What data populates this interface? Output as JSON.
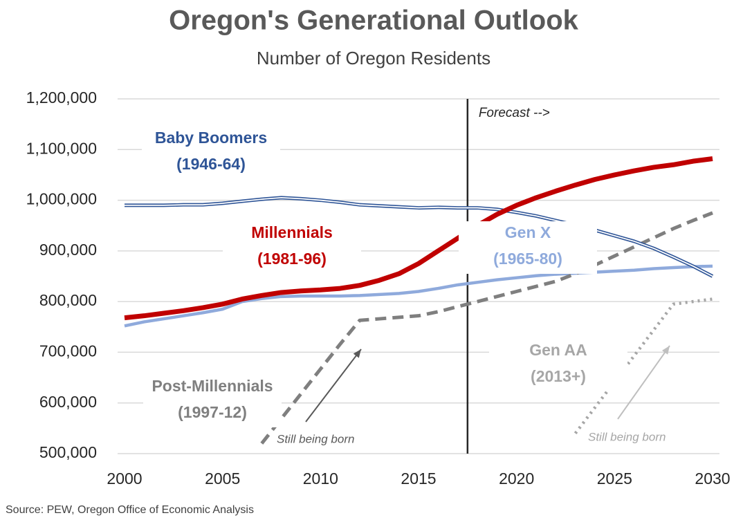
{
  "chart_data": {
    "type": "line",
    "title": "Oregon's Generational Outlook",
    "subtitle": "Number of Oregon Residents",
    "source": "Source: PEW, Oregon Office of Economic Analysis",
    "x": [
      2000,
      2001,
      2002,
      2003,
      2004,
      2005,
      2006,
      2007,
      2008,
      2009,
      2010,
      2011,
      2012,
      2013,
      2014,
      2015,
      2016,
      2017,
      2018,
      2019,
      2020,
      2021,
      2022,
      2023,
      2024,
      2025,
      2026,
      2027,
      2028,
      2029,
      2030
    ],
    "xlim": [
      2000,
      2030
    ],
    "xticks": [
      2000,
      2005,
      2010,
      2015,
      2020,
      2025,
      2030
    ],
    "ylim": [
      500000,
      1200000
    ],
    "yticks": [
      {
        "value": 500000,
        "label": "500,000"
      },
      {
        "value": 600000,
        "label": "600,000"
      },
      {
        "value": 700000,
        "label": "700,000"
      },
      {
        "value": 800000,
        "label": "800,000"
      },
      {
        "value": 900000,
        "label": "900,000"
      },
      {
        "value": 1000000,
        "label": "1,000,000"
      },
      {
        "value": 1100000,
        "label": "1,100,000"
      },
      {
        "value": 1200000,
        "label": "1,200,000"
      }
    ],
    "grid": true,
    "forecast_line": {
      "x": 2017.5,
      "label": "Forecast -->"
    },
    "series": [
      {
        "name": "Baby Boomers",
        "years": "(1946-64)",
        "color": "#2f5597",
        "style": "double",
        "values": [
          990000,
          990000,
          990000,
          991000,
          991000,
          994000,
          998000,
          1002000,
          1005000,
          1003000,
          1000000,
          996000,
          991000,
          989000,
          987000,
          985000,
          986000,
          985000,
          985000,
          982000,
          976000,
          969000,
          960000,
          951000,
          941000,
          930000,
          919000,
          905000,
          888000,
          870000,
          850000
        ]
      },
      {
        "name": "Millennials",
        "years": "(1981-96)",
        "color": "#c00000",
        "style": "thick",
        "values": [
          768000,
          772000,
          777000,
          782000,
          788000,
          795000,
          805000,
          812000,
          818000,
          821000,
          823000,
          826000,
          832000,
          842000,
          855000,
          875000,
          900000,
          925000,
          950000,
          972000,
          990000,
          1005000,
          1018000,
          1030000,
          1041000,
          1050000,
          1058000,
          1065000,
          1070000,
          1077000,
          1082000
        ]
      },
      {
        "name": "Gen X",
        "years": "(1965-80)",
        "color": "#8faadc",
        "style": "solid",
        "values": [
          752000,
          760000,
          766000,
          772000,
          778000,
          785000,
          800000,
          806000,
          810000,
          811000,
          811000,
          811000,
          812000,
          814000,
          816000,
          820000,
          826000,
          833000,
          838000,
          843000,
          847000,
          851000,
          854000,
          856000,
          858000,
          860000,
          862000,
          865000,
          867000,
          869000,
          870000
        ]
      },
      {
        "name": "Post-Millennials",
        "years": "(1997-12)",
        "color": "#7f7f7f",
        "style": "dashed",
        "values": [
          null,
          null,
          null,
          null,
          null,
          null,
          null,
          520000,
          569000,
          618000,
          667000,
          716000,
          763000,
          766000,
          769000,
          772000,
          780000,
          790000,
          800000,
          810000,
          820000,
          830000,
          840000,
          855000,
          872000,
          890000,
          908000,
          926000,
          944000,
          960000,
          975000
        ]
      },
      {
        "name": "Gen AA",
        "years": "(2013+)",
        "color": "#a6a6a6",
        "style": "dotted",
        "values": [
          null,
          null,
          null,
          null,
          null,
          null,
          null,
          null,
          null,
          null,
          null,
          null,
          null,
          null,
          null,
          null,
          null,
          null,
          null,
          null,
          null,
          null,
          null,
          540000,
          591000,
          642000,
          693000,
          744000,
          795000,
          800000,
          805000
        ]
      }
    ],
    "annotations": [
      "Still being born",
      "Still being born"
    ]
  }
}
